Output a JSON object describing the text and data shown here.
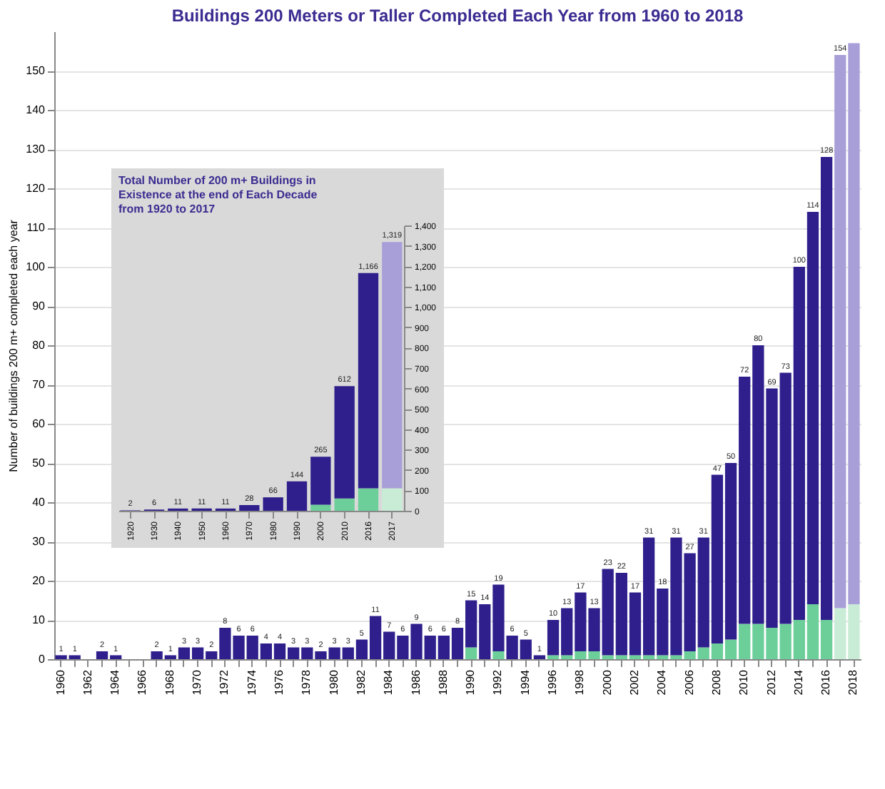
{
  "chart_data": [
    {
      "type": "bar",
      "title": "Buildings 200 Meters or Taller Completed Each Year from 1960 to 2018",
      "ylabel": "Number of buildings 200 m+ completed each year",
      "stacked": true,
      "grid": "y",
      "categories": [
        "1960",
        null,
        "1962",
        null,
        "1964",
        null,
        "1966",
        null,
        "1968",
        null,
        "1970",
        null,
        "1972",
        null,
        "1974",
        null,
        "1976",
        null,
        "1978",
        null,
        "1980",
        null,
        "1982",
        null,
        "1984",
        null,
        "1986",
        null,
        "1988",
        null,
        "1990",
        null,
        "1992",
        null,
        "1994",
        null,
        "1996",
        null,
        "1998",
        null,
        "2000",
        null,
        "2002",
        null,
        "2004",
        null,
        "2006",
        null,
        "2008",
        null,
        "2010",
        null,
        "2012",
        null,
        "2014",
        null,
        "2016",
        null,
        "2018"
      ],
      "series": [
        {
          "color": "#6ccf9a",
          "values": [
            0,
            0,
            0,
            0,
            0,
            0,
            0,
            0,
            0,
            0,
            0,
            0,
            0,
            0,
            0,
            0,
            0,
            0,
            0,
            0,
            0,
            0,
            0,
            0,
            0,
            0,
            0,
            0,
            0,
            0,
            3,
            0,
            2,
            0,
            0,
            0,
            1,
            1,
            2,
            2,
            1,
            1,
            1,
            1,
            1,
            1,
            2,
            3,
            4,
            5,
            9,
            9,
            8,
            9,
            10,
            14,
            10,
            13,
            14
          ],
          "colors": [
            null,
            null,
            null,
            null,
            null,
            null,
            null,
            null,
            null,
            null,
            null,
            null,
            null,
            null,
            null,
            null,
            null,
            null,
            null,
            null,
            null,
            null,
            null,
            null,
            null,
            null,
            null,
            null,
            null,
            null,
            null,
            null,
            null,
            null,
            null,
            null,
            null,
            null,
            null,
            null,
            null,
            null,
            null,
            null,
            null,
            null,
            null,
            null,
            null,
            null,
            null,
            null,
            null,
            null,
            null,
            null,
            null,
            "#c8ecd6",
            "#c8ecd6"
          ]
        },
        {
          "color": "#2e1f8c",
          "values": [
            1,
            1,
            0,
            2,
            1,
            0,
            0,
            2,
            1,
            3,
            3,
            2,
            8,
            6,
            6,
            4,
            4,
            3,
            3,
            2,
            3,
            3,
            5,
            11,
            7,
            6,
            9,
            6,
            6,
            8,
            12,
            14,
            17,
            6,
            5,
            1,
            9,
            12,
            15,
            11,
            22,
            21,
            16,
            30,
            17,
            30,
            25,
            28,
            43,
            45,
            63,
            71,
            61,
            64,
            90,
            100,
            118,
            141,
            143
          ],
          "colors": [
            null,
            null,
            null,
            null,
            null,
            null,
            null,
            null,
            null,
            null,
            null,
            null,
            null,
            null,
            null,
            null,
            null,
            null,
            null,
            null,
            null,
            null,
            null,
            null,
            null,
            null,
            null,
            null,
            null,
            null,
            null,
            null,
            null,
            null,
            null,
            null,
            null,
            null,
            null,
            null,
            null,
            null,
            null,
            null,
            null,
            null,
            null,
            null,
            null,
            null,
            null,
            null,
            null,
            null,
            null,
            null,
            null,
            "#a99fd8",
            "#a99fd8"
          ]
        }
      ],
      "totals": [
        "1",
        "1",
        null,
        "2",
        "1",
        null,
        null,
        "2",
        "1",
        "3",
        "3",
        "2",
        "8",
        "6",
        "6",
        "4",
        "4",
        "3",
        "3",
        "2",
        "3",
        "3",
        "5",
        "11",
        "7",
        "6",
        "9",
        "6",
        "6",
        "8",
        "15",
        "14",
        "19",
        "6",
        "5",
        "1",
        "10",
        "13",
        "17",
        "13",
        "23",
        "22",
        "17",
        "31",
        "18",
        "31",
        "27",
        "31",
        "47",
        "50",
        "72",
        "80",
        "69",
        "73",
        "100",
        "114",
        "128",
        "154",
        null
      ],
      "ylim": [
        0,
        160
      ],
      "yticks": [
        0,
        10,
        20,
        30,
        40,
        50,
        60,
        70,
        80,
        90,
        100,
        110,
        120,
        130,
        140,
        150
      ]
    },
    {
      "type": "bar",
      "title": "Total Number of 200 m+ Buildings in Existence at the end of Each Decade from 1920 to 2017",
      "stacked": true,
      "categories": [
        "1920",
        "1930",
        "1940",
        "1950",
        "1960",
        "1970",
        "1980",
        "1990",
        "2000",
        "2010",
        "2016",
        "2017"
      ],
      "series": [
        {
          "color": "#6ccf9a",
          "axis": "y2",
          "values": [
            0,
            0,
            0,
            0,
            0,
            0,
            0,
            0,
            30,
            60,
            110,
            110
          ],
          "colors": [
            null,
            null,
            null,
            null,
            null,
            null,
            null,
            null,
            null,
            null,
            null,
            "#c8ecd6"
          ]
        },
        {
          "color": "#2e1f8c",
          "axis": "y2",
          "values": [
            2,
            6,
            11,
            11,
            11,
            28,
            66,
            144,
            235,
            552,
            1056,
            1209
          ],
          "colors": [
            null,
            null,
            null,
            null,
            null,
            null,
            null,
            null,
            null,
            null,
            null,
            "#a99fd8"
          ]
        }
      ],
      "totals": [
        "2",
        "6",
        "11",
        "11",
        "11",
        "28",
        "66",
        "144",
        "265",
        "612",
        "1,166",
        "1,319"
      ],
      "y2lim": [
        0,
        1400
      ],
      "y2ticks": [
        0,
        100,
        200,
        300,
        400,
        500,
        600,
        700,
        800,
        900,
        {
          "value": 1000,
          "label": "1,000"
        },
        {
          "value": 1100,
          "label": "1,100"
        },
        {
          "value": 1200,
          "label": "1,200"
        },
        {
          "value": 1300,
          "label": "1,300"
        },
        {
          "value": 1400,
          "label": "1,400"
        }
      ]
    }
  ]
}
